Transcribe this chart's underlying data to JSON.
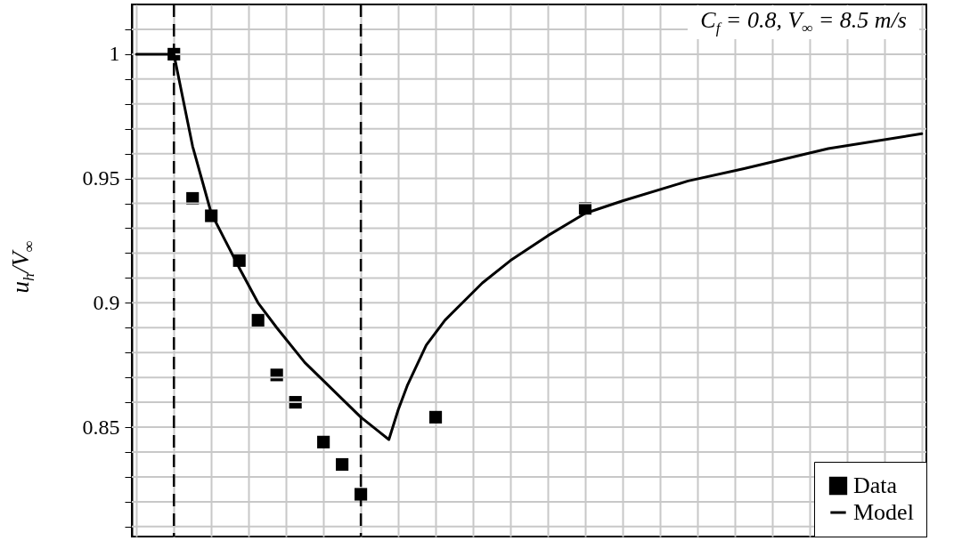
{
  "chart_data": {
    "type": "scatter",
    "ylabel": "u$_{h}$/V$_{∞}$",
    "annotations": [
      "C$_{f}$ = 0.8, V$_{∞}$ = 8.5 m/s"
    ],
    "categories": [
      null,
      null,
      null,
      null,
      null,
      null,
      null,
      null,
      null,
      null,
      null,
      null,
      null,
      null,
      null,
      null,
      null,
      null,
      null,
      null,
      null,
      null,
      null,
      null,
      null,
      null,
      null,
      null,
      null,
      null,
      null,
      null,
      null,
      null,
      null,
      null,
      null,
      null,
      null,
      null,
      null,
      null,
      null,
      null,
      null,
      null,
      null,
      null,
      null,
      null,
      null,
      null,
      null,
      null,
      null,
      null,
      null,
      null,
      null,
      null,
      null,
      null,
      null,
      null,
      null,
      null,
      null,
      null,
      null,
      null,
      null,
      null,
      null,
      null,
      null,
      null,
      null,
      null,
      null,
      null,
      null,
      null,
      null,
      null,
      null
    ],
    "series": [
      {
        "name": "Data",
        "marker": "square",
        "color": "#000000",
        "values": [
          null,
          null,
          null,
          null,
          1.0,
          null,
          0.942,
          null,
          0.935,
          null,
          null,
          0.917,
          null,
          0.893,
          null,
          0.871,
          null,
          0.86,
          null,
          null,
          0.844,
          null,
          0.835,
          null,
          0.823,
          null,
          null,
          null,
          null,
          null,
          null,
          null,
          0.854,
          null,
          null,
          null,
          null,
          null,
          null,
          null,
          null,
          null,
          null,
          null,
          null,
          null,
          null,
          null,
          0.938,
          null,
          null,
          null,
          null,
          null,
          null,
          null,
          null,
          null,
          null,
          null,
          null,
          null,
          null,
          null,
          null,
          null,
          null,
          null,
          null,
          null,
          null,
          null,
          null,
          null,
          null,
          null,
          null,
          null,
          null,
          null,
          null,
          null,
          null,
          null,
          null
        ]
      },
      {
        "name": "Model",
        "type": "line",
        "line_style": "solid",
        "color": "#000000",
        "values": [
          1.0,
          null,
          null,
          null,
          1.0,
          null,
          0.963,
          0.9495,
          0.936,
          null,
          null,
          0.914,
          null,
          0.9,
          null,
          0.89,
          null,
          null,
          0.876,
          null,
          null,
          0.865,
          null,
          null,
          0.854,
          null,
          0.848,
          0.845,
          0.857,
          0.867,
          null,
          0.883,
          null,
          0.893,
          null,
          null,
          null,
          0.908,
          null,
          null,
          0.917,
          null,
          null,
          null,
          0.927,
          null,
          null,
          null,
          0.936,
          null,
          null,
          null,
          0.941,
          null,
          null,
          null,
          null,
          null,
          null,
          0.949,
          null,
          null,
          null,
          null,
          null,
          0.954,
          null,
          null,
          null,
          null,
          null,
          null,
          null,
          null,
          0.962,
          null,
          null,
          null,
          null,
          null,
          null,
          null,
          null,
          null,
          0.968
        ]
      }
    ],
    "ylim": [
      0.806,
      1.02
    ],
    "yticks": [
      {
        "value": 0.81,
        "label": null
      },
      {
        "value": 0.82,
        "label": null
      },
      {
        "value": 0.83,
        "label": null
      },
      {
        "value": 0.84,
        "label": null
      },
      0.85,
      {
        "value": 0.86,
        "label": null
      },
      {
        "value": 0.87,
        "label": null
      },
      {
        "value": 0.88,
        "label": null
      },
      {
        "value": 0.89,
        "label": null
      },
      0.9,
      {
        "value": 0.91,
        "label": null
      },
      {
        "value": 0.92,
        "label": null
      },
      {
        "value": 0.93,
        "label": null
      },
      {
        "value": 0.94,
        "label": null
      },
      0.95,
      {
        "value": 0.96,
        "label": null
      },
      {
        "value": 0.97,
        "label": null
      },
      {
        "value": 0.98,
        "label": null
      },
      {
        "value": 0.99,
        "label": null
      },
      1,
      {
        "value": 1.01,
        "label": null
      }
    ],
    "grid": true,
    "legend": "bottom right",
    "tick_labels": "y"
  }
}
